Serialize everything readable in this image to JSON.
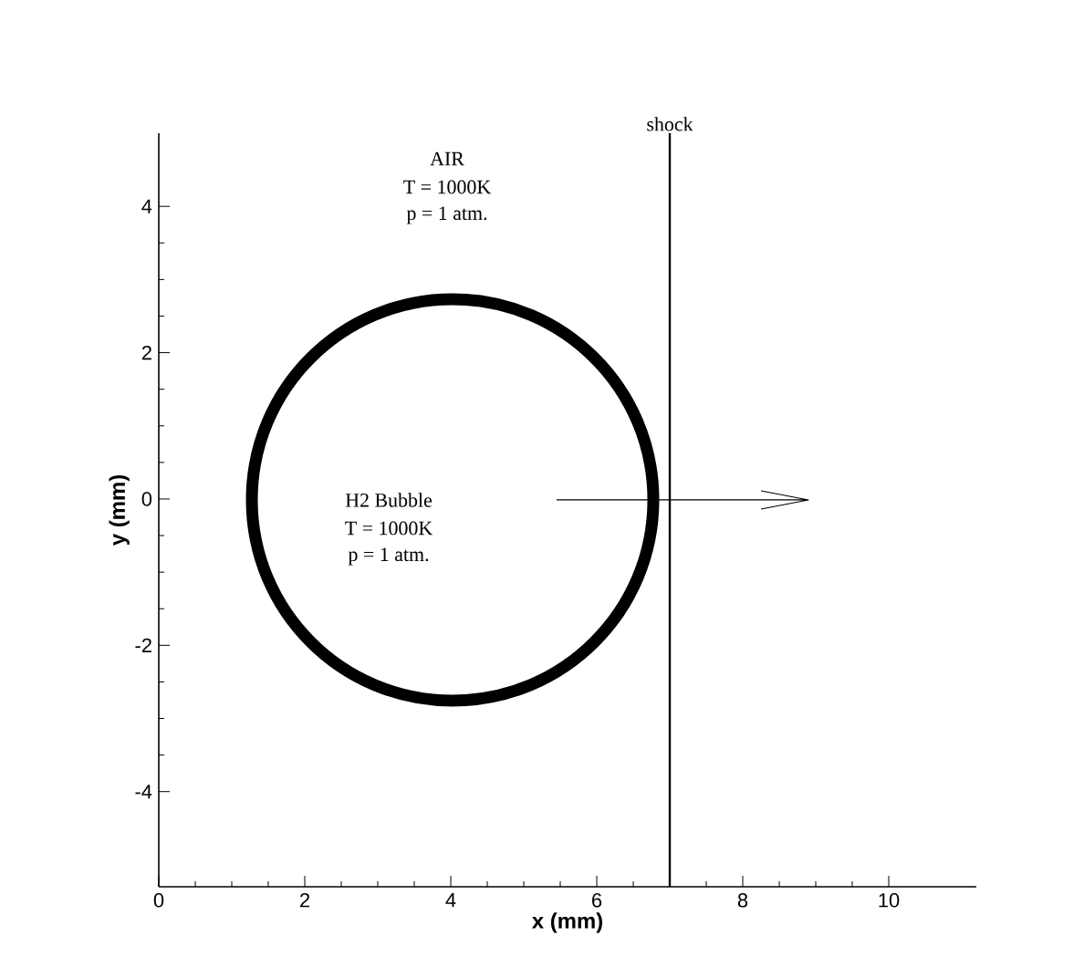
{
  "chart_data": {
    "type": "line",
    "xlabel": "x (mm)",
    "ylabel": "y (mm)",
    "xlim": [
      0,
      11.2
    ],
    "ylim": [
      -5.3,
      5
    ],
    "xticks": [
      0,
      2,
      4,
      6,
      8,
      10
    ],
    "yticks": [
      -4,
      -2,
      0,
      2,
      4
    ],
    "grid": false,
    "ref_lines": [
      {
        "axis": "x",
        "value": 7,
        "label": "shock",
        "color": "#000000"
      }
    ],
    "annotations": [
      "AIR",
      "T = 1000K",
      "p = 1 atm.",
      "H2 Bubble",
      "T = 1000K",
      "p = 1 atm."
    ]
  }
}
